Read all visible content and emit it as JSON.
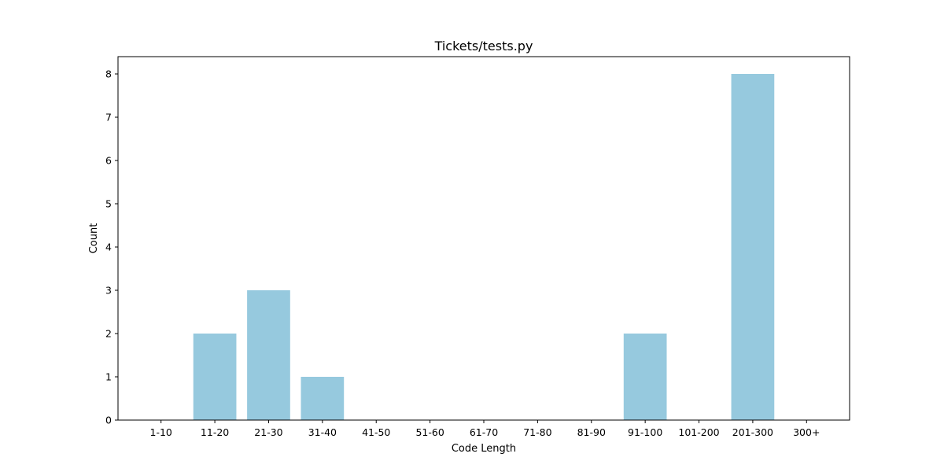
{
  "chart_data": {
    "type": "bar",
    "title": "Tickets/tests.py",
    "xlabel": "Code Length",
    "ylabel": "Count",
    "categories": [
      "1-10",
      "11-20",
      "21-30",
      "31-40",
      "41-50",
      "51-60",
      "61-70",
      "71-80",
      "81-90",
      "91-100",
      "101-200",
      "201-300",
      "300+"
    ],
    "values": [
      0,
      2,
      3,
      1,
      0,
      0,
      0,
      0,
      0,
      2,
      0,
      8,
      0
    ],
    "yticks": [
      "0",
      "1",
      "2",
      "3",
      "4",
      "5",
      "6",
      "7",
      "8"
    ],
    "ylim": [
      0,
      8.4
    ],
    "bar_color": "#96c9de",
    "grid": false,
    "legend": "none"
  }
}
